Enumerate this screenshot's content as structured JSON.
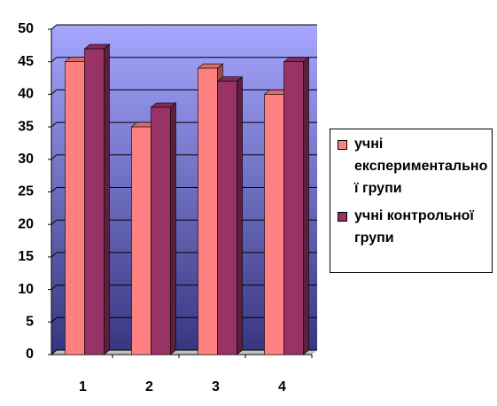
{
  "chart_data": {
    "type": "bar3d",
    "categories": [
      "1",
      "2",
      "3",
      "4"
    ],
    "series": [
      {
        "name": "учні експериментальної групи",
        "color": "#ff8080",
        "values": [
          45,
          35,
          44,
          40
        ]
      },
      {
        "name": "учні контрольної групи",
        "color": "#993366",
        "values": [
          47,
          38,
          42,
          45
        ]
      }
    ],
    "ylim": [
      0,
      50
    ],
    "yticks": [
      0,
      5,
      10,
      15,
      20,
      25,
      30,
      35,
      40,
      45,
      50
    ],
    "grid": true,
    "legend": "right"
  }
}
